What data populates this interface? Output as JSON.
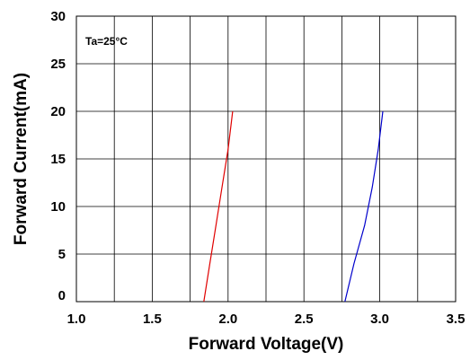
{
  "chart_data": {
    "type": "line",
    "title": "",
    "xlabel": "Forward Voltage(V)",
    "ylabel": "Forward Current(mA)",
    "xlim": [
      1.0,
      3.5
    ],
    "ylim": [
      0,
      30
    ],
    "x_ticks": [
      "1.0",
      "1.5",
      "2.0",
      "2.5",
      "3.0",
      "3.5"
    ],
    "y_ticks": [
      "0",
      "5",
      "10",
      "15",
      "20",
      "25",
      "30"
    ],
    "grid": true,
    "annotation": "Ta=25°C",
    "series": [
      {
        "color": "#e00000",
        "points": [
          [
            1.84,
            0
          ],
          [
            1.88,
            4
          ],
          [
            1.92,
            8
          ],
          [
            1.96,
            12
          ],
          [
            2.0,
            16
          ],
          [
            2.03,
            20
          ]
        ]
      },
      {
        "color": "#0000cc",
        "points": [
          [
            2.77,
            0
          ],
          [
            2.83,
            4
          ],
          [
            2.9,
            8
          ],
          [
            2.95,
            12
          ],
          [
            2.99,
            16
          ],
          [
            3.02,
            20
          ]
        ]
      }
    ]
  }
}
